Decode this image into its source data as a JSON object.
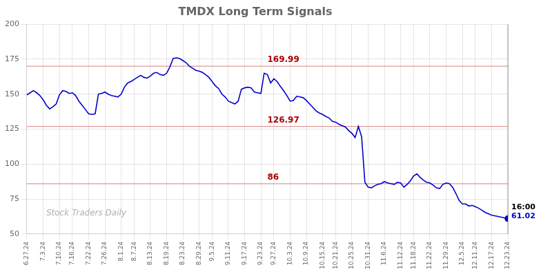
{
  "chart_data": {
    "type": "line",
    "title": "TMDX Long Term Signals",
    "categories": [
      "6.27.24",
      null,
      null,
      null,
      null,
      "7.3.24",
      null,
      null,
      null,
      null,
      "7.10.24",
      null,
      null,
      null,
      "7.16.24",
      null,
      null,
      null,
      null,
      "7.22.24",
      null,
      null,
      null,
      null,
      "7.26.24",
      null,
      null,
      null,
      null,
      "8.1.24",
      null,
      null,
      null,
      "8.7.24",
      null,
      null,
      null,
      null,
      "8.13.24",
      null,
      null,
      null,
      null,
      "8.19.24",
      null,
      null,
      null,
      null,
      "8.23.24",
      null,
      null,
      null,
      null,
      "8.29.24",
      null,
      null,
      null,
      "9.5.24",
      null,
      null,
      null,
      null,
      "9.11.24",
      null,
      null,
      null,
      null,
      "9.17.24",
      null,
      null,
      null,
      null,
      "9.23.24",
      null,
      null,
      null,
      "9.27.24",
      null,
      null,
      null,
      null,
      "10.3.24",
      null,
      null,
      null,
      null,
      "10.9.24",
      null,
      null,
      null,
      null,
      "10.15.24",
      null,
      null,
      null,
      "10.21.24",
      null,
      null,
      null,
      null,
      "10.25.24",
      null,
      null,
      null,
      null,
      "10.31.24",
      null,
      null,
      null,
      null,
      "11.6.24",
      null,
      null,
      null,
      null,
      "11.12.24",
      null,
      null,
      null,
      "11.18.24",
      null,
      null,
      null,
      null,
      "11.22.24",
      null,
      null,
      null,
      null,
      "11.29.24",
      null,
      null,
      null,
      null,
      "12.5.24",
      null,
      null,
      null,
      "12.11.24",
      null,
      null,
      null,
      null,
      "12.17.24",
      null,
      null,
      null,
      null,
      "12.23.24"
    ],
    "values": [
      149.5,
      151.0,
      152.5,
      151.0,
      149.0,
      146.0,
      142.0,
      139.5,
      141.0,
      143.0,
      149.5,
      152.5,
      152.0,
      150.5,
      151.0,
      149.0,
      145.0,
      142.0,
      139.0,
      136.0,
      135.5,
      136.0,
      150.0,
      150.5,
      151.5,
      150.0,
      149.0,
      148.5,
      148.0,
      150.0,
      155.0,
      158.0,
      159.0,
      160.5,
      162.0,
      163.5,
      162.0,
      161.5,
      163.0,
      165.0,
      165.5,
      164.0,
      163.5,
      165.0,
      169.5,
      175.5,
      176.0,
      175.5,
      174.0,
      172.5,
      170.0,
      168.5,
      167.0,
      166.5,
      165.5,
      164.0,
      162.0,
      159.0,
      156.0,
      154.0,
      150.0,
      148.0,
      145.0,
      144.0,
      143.0,
      145.0,
      153.5,
      154.5,
      155.0,
      154.5,
      151.5,
      151.0,
      150.5,
      165.0,
      164.0,
      158.0,
      161.0,
      159.0,
      155.5,
      152.5,
      149.0,
      145.0,
      145.5,
      148.5,
      148.0,
      147.5,
      145.5,
      143.0,
      140.5,
      138.0,
      136.5,
      135.5,
      134.0,
      133.0,
      130.5,
      130.0,
      128.5,
      127.5,
      126.5,
      124.0,
      122.0,
      119.0,
      127.0,
      119.5,
      87.0,
      83.5,
      83.0,
      84.5,
      85.5,
      86.0,
      87.5,
      86.5,
      86.0,
      85.5,
      87.0,
      86.5,
      83.5,
      85.5,
      88.0,
      91.5,
      93.0,
      90.5,
      88.5,
      87.0,
      86.5,
      85.0,
      83.0,
      82.5,
      85.5,
      86.5,
      86.0,
      83.5,
      79.0,
      74.0,
      71.5,
      71.5,
      70.0,
      70.5,
      69.5,
      68.5,
      67.0,
      65.5,
      64.5,
      63.5,
      63.0,
      62.5,
      62.0,
      61.5,
      61.02
    ],
    "color": "#0000cc",
    "ylim": [
      50,
      200
    ],
    "yticks": [
      50,
      75,
      100,
      125,
      150,
      175,
      200
    ],
    "grid": true,
    "annotations": [
      {
        "kind": "hline",
        "text": "169.99",
        "y": 169.99,
        "color": "#aa0000"
      },
      {
        "kind": "hline",
        "text": "126.97",
        "y": 126.97,
        "color": "#aa0000"
      },
      {
        "kind": "hline",
        "text": "86",
        "y": 86.0,
        "color": "#aa0000"
      },
      {
        "kind": "end_time",
        "text": "16:00"
      },
      {
        "kind": "end_price",
        "text": "61.02",
        "y": 61.02,
        "color": "#0000cc"
      },
      {
        "kind": "watermark",
        "text": "Stock Traders Daily"
      }
    ]
  }
}
